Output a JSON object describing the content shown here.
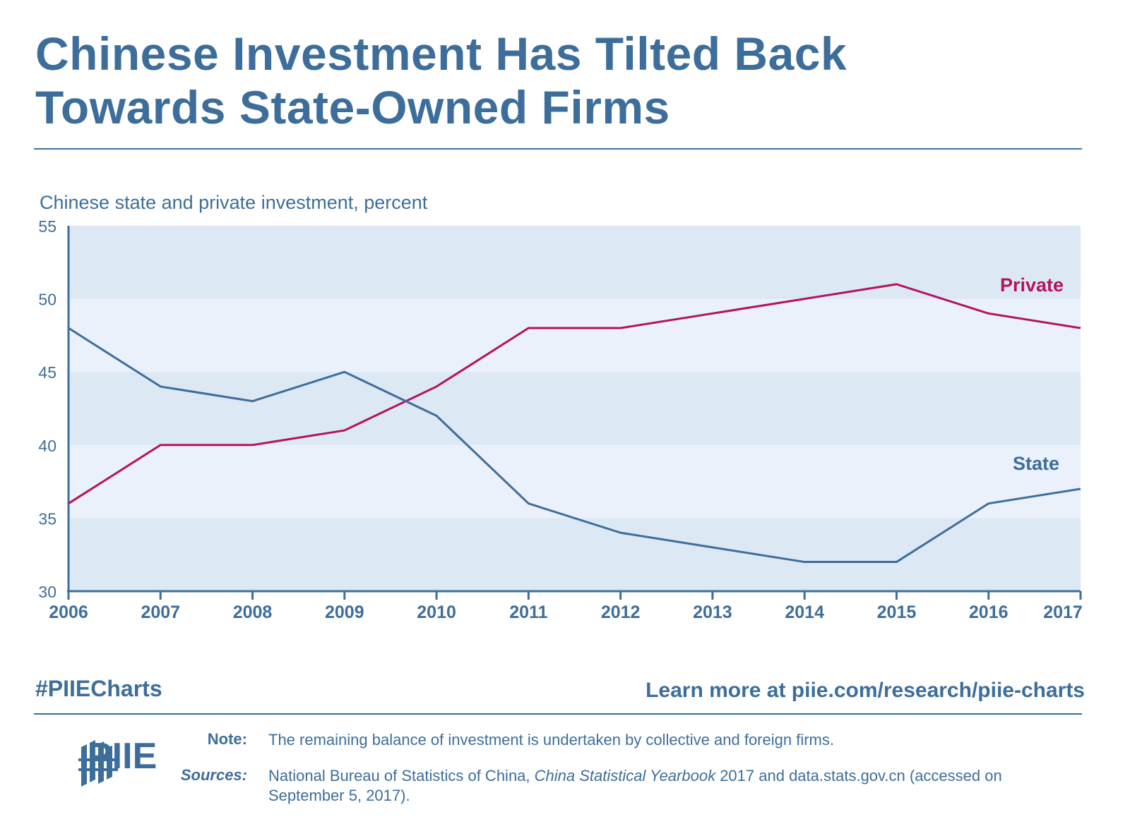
{
  "title_line1": "Chinese Investment Has Tilted Back",
  "title_line2": "Towards State-Owned Firms",
  "colors": {
    "primary": "#3d6e9b",
    "private": "#b3135f",
    "state": "#3d6e9b",
    "band_dark": "#dde8f5",
    "band_light": "#eaf1fa"
  },
  "chart_data": {
    "type": "line",
    "title": "Chinese state and private investment, percent",
    "xlabel": "",
    "ylabel": "",
    "x": [
      "2006",
      "2007",
      "2008",
      "2009",
      "2010",
      "2011",
      "2012",
      "2013",
      "2014",
      "2015",
      "2016",
      "2017"
    ],
    "ylim": [
      30,
      55
    ],
    "yticks": [
      30,
      35,
      40,
      45,
      50,
      55
    ],
    "series": [
      {
        "name": "Private",
        "color": "#b3135f",
        "values": [
          36,
          40,
          40,
          41,
          44,
          48,
          48,
          49,
          50,
          51,
          49,
          48
        ]
      },
      {
        "name": "State",
        "color": "#3d6e9b",
        "values": [
          48,
          44,
          43,
          45,
          42,
          36,
          34,
          33,
          32,
          32,
          36,
          37
        ]
      }
    ]
  },
  "footer": {
    "hashtag": "#PIIECharts",
    "learn_more": "Learn more at piie.com/research/piie-charts",
    "logo_text": "PIIE",
    "note_label": "Note:",
    "note_text": "The remaining balance of investment is undertaken by collective and foreign firms.",
    "sources_label": "Sources:",
    "sources_before": "National Bureau of Statistics of China, ",
    "sources_italic": "China Statistical Yearbook",
    "sources_after": " 2017 and data.stats.gov.cn (accessed on September 5, 2017)."
  }
}
